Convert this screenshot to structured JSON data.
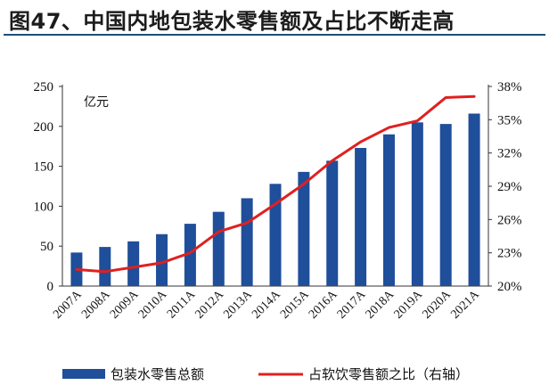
{
  "title": "图47、中国内地包装水零售额及占比不断走高",
  "chart_data": {
    "type": "bar+line",
    "unit_label": "亿元",
    "categories": [
      "2007A",
      "2008A",
      "2009A",
      "2010A",
      "2011A",
      "2012A",
      "2013A",
      "2014A",
      "2015A",
      "2016A",
      "2017A",
      "2018A",
      "2019A",
      "2020A",
      "2021A"
    ],
    "series": [
      {
        "name": "包装水零售总额",
        "axis": "left",
        "type": "bar",
        "color": "#1f4e9a",
        "values": [
          42,
          49,
          56,
          65,
          78,
          93,
          110,
          128,
          143,
          157,
          173,
          190,
          205,
          203,
          216
        ]
      },
      {
        "name": "占软饮零售额之比（右轴）",
        "axis": "right",
        "type": "line",
        "color": "#e02020",
        "values": [
          21.5,
          21.3,
          21.7,
          22.1,
          23.0,
          24.9,
          25.7,
          27.4,
          29.2,
          31.3,
          33.0,
          34.3,
          34.9,
          37.0,
          37.1
        ]
      }
    ],
    "left_axis": {
      "ylim": [
        0,
        250
      ],
      "ticks": [
        0,
        50,
        100,
        150,
        200,
        250
      ]
    },
    "right_axis": {
      "ylim": [
        20,
        38
      ],
      "ticks": [
        "20%",
        "23%",
        "26%",
        "29%",
        "32%",
        "35%",
        "38%"
      ]
    }
  }
}
